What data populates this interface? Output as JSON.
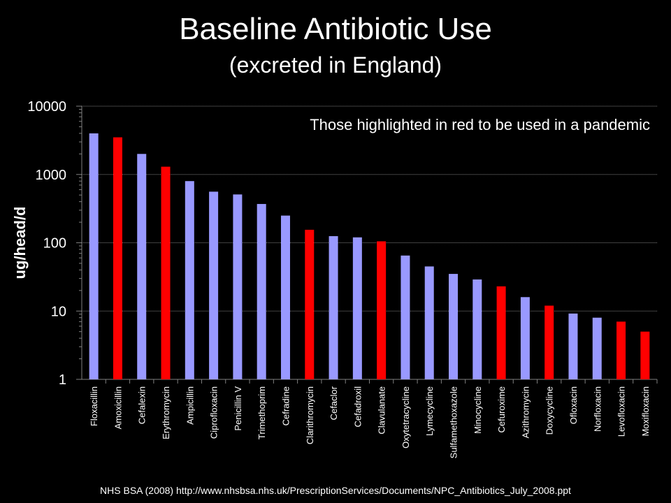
{
  "slide": {
    "title": "Baseline Antibiotic Use",
    "subtitle": "(excreted in England)",
    "footer": "NHS BSA (2008) http://www.nhsbsa.nhs.uk/PrescriptionServices/Documents/NPC_Antibiotics_July_2008.ppt"
  },
  "colors": {
    "background": "#000000",
    "bar_default": "#9999ff",
    "bar_highlight": "#ff0000",
    "gridline": "#808080",
    "text": "#ffffff"
  },
  "chart_data": {
    "type": "bar",
    "title": "",
    "xlabel": "",
    "ylabel": "ug/head/d",
    "yscale": "log",
    "ylim": [
      1,
      10000
    ],
    "yticks": [
      1,
      10,
      100,
      1000,
      10000
    ],
    "ytick_labels": [
      "1",
      "10",
      "100",
      "1000",
      "10000"
    ],
    "grid": true,
    "annotation": "Those highlighted in red to be used in a pandemic",
    "categories": [
      "Floxacillin",
      "Amoxicillin",
      "Cefalexin",
      "Erythromycin",
      "Ampicillin",
      "Ciprofloxacin",
      "Penicillin V",
      "Trimethoprim",
      "Cefradine",
      "Clarithromycin",
      "Cefaclor",
      "Cefadroxil",
      "Clavulanate",
      "Oxytetracycline",
      "Lymecycline",
      "Sulfamethoxazole",
      "Minocycline",
      "Cefuroxime",
      "Azithromycin",
      "Doxycycline",
      "Ofloxacin",
      "Norfloxacin",
      "Levofloxacin",
      "Moxifloxacin"
    ],
    "values": [
      4000,
      3500,
      2000,
      1300,
      800,
      560,
      510,
      370,
      250,
      155,
      125,
      120,
      105,
      65,
      45,
      35,
      29,
      23,
      16,
      12,
      9.2,
      8,
      7,
      5
    ],
    "highlighted": [
      false,
      true,
      false,
      true,
      false,
      false,
      false,
      false,
      false,
      true,
      false,
      false,
      true,
      false,
      false,
      false,
      false,
      true,
      false,
      true,
      false,
      false,
      true,
      true
    ]
  }
}
